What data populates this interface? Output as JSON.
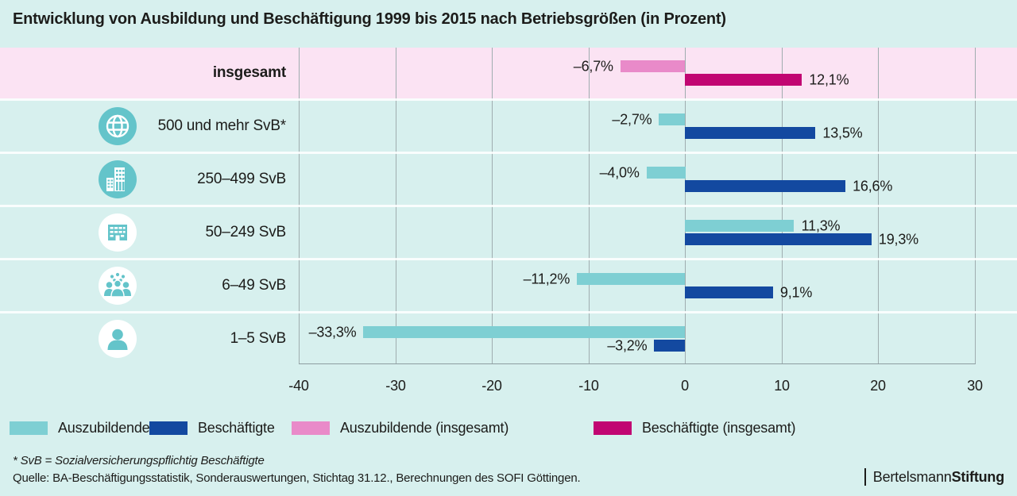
{
  "title": "Entwicklung von Ausbildung und Beschäftigung 1999 bis 2015 nach Betriebsgrößen (in Prozent)",
  "colors": {
    "background": "#d7f0ee",
    "highlight_row_bg": "#fbe3f3",
    "teal": "#7ecfd3",
    "blue": "#1349a0",
    "pink": "#e98ac9",
    "magenta": "#c10672",
    "icon_teal": "#64c4ca",
    "gridline": "#9fadaf",
    "text": "#1c1c1a"
  },
  "chart_data": {
    "type": "bar",
    "orientation": "horizontal",
    "unit": "percent",
    "title": "Entwicklung von Ausbildung und Beschäftigung 1999 bis 2015 nach Betriebsgrößen (in Prozent)",
    "axis": {
      "min": -40,
      "max": 30,
      "ticks": [
        -40,
        -30,
        -20,
        -10,
        0,
        10,
        20,
        30
      ],
      "tick_labels": [
        "-40",
        "-30",
        "-20",
        "-10",
        "0",
        "10",
        "20",
        "30"
      ],
      "grid": true
    },
    "rows": [
      {
        "label": "insgesamt",
        "bold": true,
        "highlight": true,
        "icon": null,
        "icon_style": null,
        "series": [
          {
            "name": "Auszubildende (insgesamt)",
            "value": -6.7,
            "display": "–6,7%",
            "color": "pink"
          },
          {
            "name": "Beschäftigte (insgesamt)",
            "value": 12.1,
            "display": "12,1%",
            "color": "magenta"
          }
        ]
      },
      {
        "label": "500 und mehr SvB*",
        "bold": false,
        "highlight": false,
        "icon": "globe-icon",
        "icon_style": "filled",
        "series": [
          {
            "name": "Auszubildende",
            "value": -2.7,
            "display": "–2,7%",
            "color": "teal"
          },
          {
            "name": "Beschäftigte",
            "value": 13.5,
            "display": "13,5%",
            "color": "blue"
          }
        ]
      },
      {
        "label": "250–499 SvB",
        "bold": false,
        "highlight": false,
        "icon": "skyscraper-icon",
        "icon_style": "filled",
        "series": [
          {
            "name": "Auszubildende",
            "value": -4.0,
            "display": "–4,0%",
            "color": "teal"
          },
          {
            "name": "Beschäftigte",
            "value": 16.6,
            "display": "16,6%",
            "color": "blue"
          }
        ]
      },
      {
        "label": "50–249 SvB",
        "bold": false,
        "highlight": false,
        "icon": "building-icon",
        "icon_style": "light",
        "series": [
          {
            "name": "Auszubildende",
            "value": 11.3,
            "display": "11,3%",
            "color": "teal"
          },
          {
            "name": "Beschäftigte",
            "value": 19.3,
            "display": "19,3%",
            "color": "blue"
          }
        ]
      },
      {
        "label": "6–49 SvB",
        "bold": false,
        "highlight": false,
        "icon": "people-group-icon",
        "icon_style": "light",
        "series": [
          {
            "name": "Auszubildende",
            "value": -11.2,
            "display": "–11,2%",
            "color": "teal"
          },
          {
            "name": "Beschäftigte",
            "value": 9.1,
            "display": "9,1%",
            "color": "blue"
          }
        ]
      },
      {
        "label": "1–5 SvB",
        "bold": false,
        "highlight": false,
        "icon": "person-icon",
        "icon_style": "light",
        "series": [
          {
            "name": "Auszubildende",
            "value": -33.3,
            "display": "–33,3%",
            "color": "teal"
          },
          {
            "name": "Beschäftigte",
            "value": -3.2,
            "display": "–3,2%",
            "color": "blue"
          }
        ]
      }
    ]
  },
  "legend": [
    {
      "label": "Auszubildende",
      "color": "teal"
    },
    {
      "label": "Beschäftigte",
      "color": "blue"
    },
    {
      "label": "Auszubildende (insgesamt)",
      "color": "pink"
    },
    {
      "label": "Beschäftigte (insgesamt)",
      "color": "magenta"
    }
  ],
  "footnote": "* SvB = Sozialversicherungspflichtig Beschäftigte",
  "source": "Quelle: BA-Beschäftigungsstatistik, Sonderauswertungen, Stichtag 31.12., Berechnungen des SOFI Göttingen.",
  "logo": {
    "name": "Bertelsmann",
    "bold": "Stiftung"
  }
}
